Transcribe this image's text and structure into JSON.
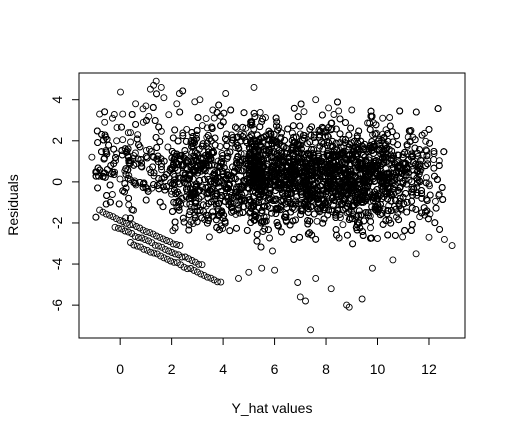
{
  "chart_data": {
    "type": "scatter",
    "title": "",
    "xlabel": "Y_hat values",
    "ylabel": "Residuals",
    "xlim": [
      -1.6,
      13.4
    ],
    "ylim": [
      -7.6,
      5.3
    ],
    "xticks": [
      0,
      2,
      4,
      6,
      8,
      10,
      12
    ],
    "yticks": [
      -6,
      -4,
      -2,
      0,
      2,
      4
    ],
    "xtick_labels": [
      "0",
      "2",
      "4",
      "6",
      "8",
      "10",
      "12"
    ],
    "ytick_labels": [
      "-6",
      "-4",
      "-2",
      "0",
      "2",
      "4"
    ],
    "marker": "open-circle",
    "grid": false,
    "legend": "none",
    "series": [
      {
        "point_count_estimate": 6000,
        "points": [
          [
            -1.1,
            1.2
          ],
          [
            -0.8,
            3.3
          ],
          [
            -0.6,
            2.9
          ],
          [
            -0.3,
            3.1
          ],
          [
            0.1,
            3.3
          ],
          [
            0.4,
            2.4
          ],
          [
            0.6,
            3.8
          ],
          [
            0.9,
            2.9
          ],
          [
            1.0,
            3.7
          ],
          [
            1.3,
            4.7
          ],
          [
            1.4,
            4.9
          ],
          [
            1.6,
            4.6
          ],
          [
            1.7,
            4.1
          ],
          [
            2.2,
            3.8
          ],
          [
            2.3,
            4.3
          ],
          [
            2.9,
            3.9
          ],
          [
            3.1,
            4.0
          ],
          [
            3.6,
            3.5
          ],
          [
            4.1,
            4.3
          ],
          [
            5.2,
            4.6
          ],
          [
            7.6,
            4.0
          ],
          [
            8.1,
            3.6
          ],
          [
            9.0,
            3.5
          ],
          [
            10.2,
            3.1
          ],
          [
            11.3,
            2.5
          ],
          [
            12.4,
            -0.6
          ],
          [
            12.6,
            -2.8
          ],
          [
            12.9,
            -3.1
          ],
          [
            4.6,
            -4.7
          ],
          [
            5.0,
            -4.4
          ],
          [
            5.5,
            -4.2
          ],
          [
            6.0,
            -4.3
          ],
          [
            6.9,
            -4.9
          ],
          [
            7.0,
            -5.6
          ],
          [
            7.2,
            -5.8
          ],
          [
            7.4,
            -7.2
          ],
          [
            7.6,
            -4.7
          ],
          [
            8.2,
            -5.2
          ],
          [
            8.8,
            -6.0
          ],
          [
            8.9,
            -6.1
          ],
          [
            9.4,
            -5.7
          ],
          [
            9.8,
            -4.2
          ],
          [
            10.6,
            -3.8
          ],
          [
            11.5,
            -3.5
          ],
          [
            12.0,
            -2.7
          ]
        ]
      }
    ]
  }
}
